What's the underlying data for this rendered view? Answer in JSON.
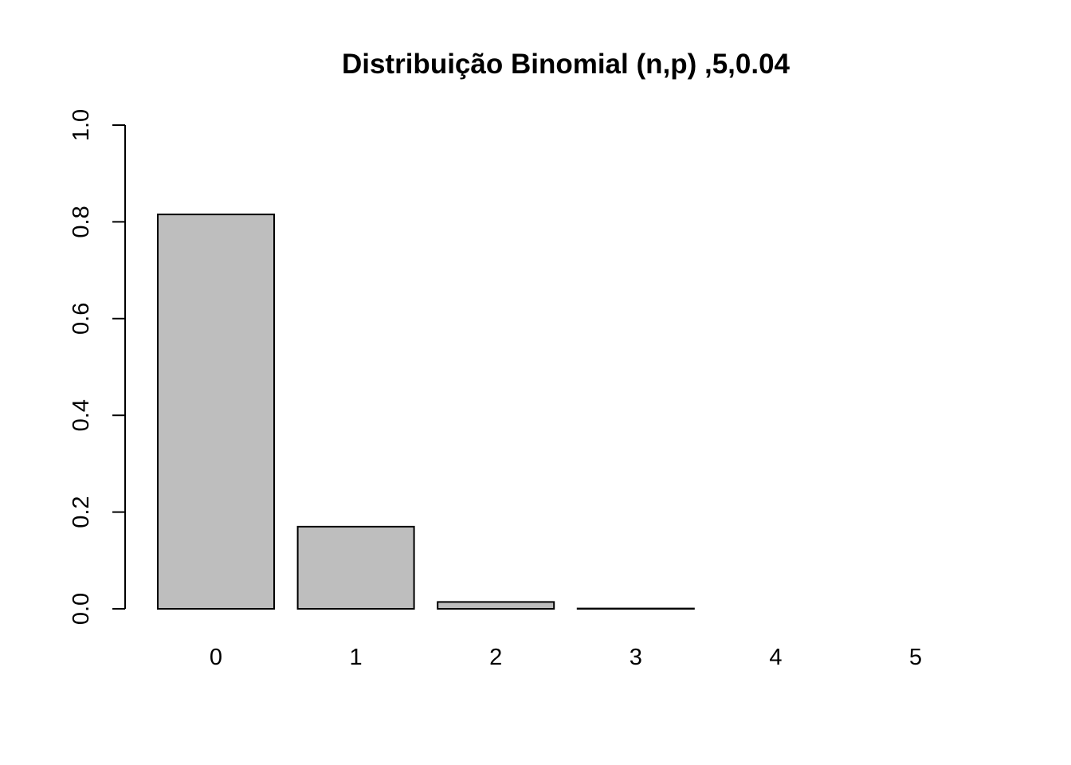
{
  "chart_data": {
    "type": "bar",
    "title": "Distribuição Binomial (n,p) ,5,0.04",
    "xlabel": "",
    "ylabel": "",
    "categories": [
      "0",
      "1",
      "2",
      "3",
      "4",
      "5"
    ],
    "values": [
      0.8154,
      0.1699,
      0.0142,
      0.0006,
      0.0,
      0.0
    ],
    "ylim": [
      0,
      1
    ],
    "yticks": [
      "0.0",
      "0.2",
      "0.4",
      "0.6",
      "0.8",
      "1.0"
    ],
    "grid": false,
    "legend": "none",
    "bar_color": "#bebebe",
    "border_color": "#000000"
  }
}
